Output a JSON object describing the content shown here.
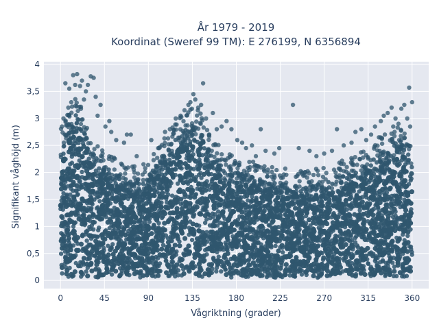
{
  "chart_data": {
    "type": "scatter",
    "title_line1": "År 1979 - 2019",
    "title_line2": "Koordinat (Sweref 99 TM): E 276199, N 6356894",
    "xlabel": "Vågriktning (grader)",
    "ylabel": "Signifikant våghöjd (m)",
    "xlim": [
      -17,
      377
    ],
    "ylim": [
      -0.15,
      4.05
    ],
    "xticks": [
      0,
      45,
      90,
      135,
      180,
      225,
      270,
      315,
      360
    ],
    "xtick_labels": [
      "0",
      "45",
      "90",
      "135",
      "180",
      "225",
      "270",
      "315",
      "360"
    ],
    "yticks": [
      0,
      0.5,
      1,
      1.5,
      2,
      2.5,
      3,
      3.5,
      4
    ],
    "ytick_labels": [
      "0",
      "0,5",
      "1",
      "1,5",
      "2",
      "2,5",
      "3",
      "3,5",
      "4"
    ],
    "grid": true,
    "marker_color": "#2f566e",
    "plot_bg": "#e5e8f0",
    "envelope": {
      "x": [
        0,
        5,
        10,
        15,
        20,
        25,
        30,
        40,
        50,
        60,
        70,
        80,
        90,
        100,
        110,
        120,
        130,
        135,
        140,
        145,
        150,
        160,
        170,
        180,
        190,
        200,
        210,
        225,
        240,
        255,
        270,
        285,
        300,
        315,
        330,
        340,
        350,
        355,
        360
      ],
      "y_max": [
        2.5,
        2.7,
        3.0,
        3.1,
        2.95,
        2.8,
        2.5,
        2.2,
        2.05,
        1.95,
        1.85,
        1.8,
        1.9,
        2.2,
        2.5,
        2.7,
        2.85,
        2.95,
        2.9,
        2.75,
        2.5,
        2.25,
        2.05,
        2.0,
        1.95,
        1.9,
        1.85,
        1.8,
        1.75,
        1.75,
        1.8,
        1.9,
        2.0,
        2.15,
        2.4,
        2.55,
        2.6,
        2.45,
        2.2
      ]
    },
    "outliers": [
      {
        "x": 5,
        "y": 3.65
      },
      {
        "x": 9,
        "y": 3.55
      },
      {
        "x": 13,
        "y": 3.8
      },
      {
        "x": 15,
        "y": 3.62
      },
      {
        "x": 17,
        "y": 3.82
      },
      {
        "x": 20,
        "y": 3.6
      },
      {
        "x": 22,
        "y": 3.7
      },
      {
        "x": 26,
        "y": 3.5
      },
      {
        "x": 28,
        "y": 3.62
      },
      {
        "x": 31,
        "y": 3.78
      },
      {
        "x": 34,
        "y": 3.75
      },
      {
        "x": 36,
        "y": 3.4
      },
      {
        "x": 11,
        "y": 3.3
      },
      {
        "x": 8,
        "y": 3.2
      },
      {
        "x": 41,
        "y": 3.25
      },
      {
        "x": 24,
        "y": 3.35
      },
      {
        "x": 3,
        "y": 3.0
      },
      {
        "x": 38,
        "y": 3.05
      },
      {
        "x": 46,
        "y": 2.85
      },
      {
        "x": 50,
        "y": 2.95
      },
      {
        "x": 52,
        "y": 2.75
      },
      {
        "x": 57,
        "y": 2.6
      },
      {
        "x": 65,
        "y": 2.55
      },
      {
        "x": 68,
        "y": 2.7
      },
      {
        "x": 72,
        "y": 2.7
      },
      {
        "x": 78,
        "y": 2.3
      },
      {
        "x": 85,
        "y": 2.15
      },
      {
        "x": 93,
        "y": 2.6
      },
      {
        "x": 100,
        "y": 2.45
      },
      {
        "x": 107,
        "y": 2.75
      },
      {
        "x": 112,
        "y": 2.8
      },
      {
        "x": 118,
        "y": 3.0
      },
      {
        "x": 123,
        "y": 3.05
      },
      {
        "x": 127,
        "y": 3.15
      },
      {
        "x": 131,
        "y": 3.25
      },
      {
        "x": 133,
        "y": 3.3
      },
      {
        "x": 136,
        "y": 3.45
      },
      {
        "x": 138,
        "y": 3.35
      },
      {
        "x": 141,
        "y": 3.2
      },
      {
        "x": 144,
        "y": 3.25
      },
      {
        "x": 146,
        "y": 3.65
      },
      {
        "x": 149,
        "y": 3.0
      },
      {
        "x": 156,
        "y": 3.1
      },
      {
        "x": 160,
        "y": 2.8
      },
      {
        "x": 165,
        "y": 2.85
      },
      {
        "x": 170,
        "y": 2.95
      },
      {
        "x": 175,
        "y": 2.8
      },
      {
        "x": 181,
        "y": 2.6
      },
      {
        "x": 186,
        "y": 2.55
      },
      {
        "x": 190,
        "y": 2.45
      },
      {
        "x": 196,
        "y": 2.5
      },
      {
        "x": 200,
        "y": 2.3
      },
      {
        "x": 205,
        "y": 2.8
      },
      {
        "x": 210,
        "y": 2.4
      },
      {
        "x": 219,
        "y": 2.35
      },
      {
        "x": 224,
        "y": 2.45
      },
      {
        "x": 238,
        "y": 3.25
      },
      {
        "x": 244,
        "y": 2.45
      },
      {
        "x": 255,
        "y": 2.4
      },
      {
        "x": 262,
        "y": 2.3
      },
      {
        "x": 270,
        "y": 2.35
      },
      {
        "x": 278,
        "y": 2.4
      },
      {
        "x": 283,
        "y": 2.8
      },
      {
        "x": 290,
        "y": 2.5
      },
      {
        "x": 298,
        "y": 2.55
      },
      {
        "x": 302,
        "y": 2.75
      },
      {
        "x": 308,
        "y": 2.8
      },
      {
        "x": 313,
        "y": 2.6
      },
      {
        "x": 318,
        "y": 2.7
      },
      {
        "x": 322,
        "y": 2.85
      },
      {
        "x": 328,
        "y": 2.95
      },
      {
        "x": 331,
        "y": 3.05
      },
      {
        "x": 335,
        "y": 3.1
      },
      {
        "x": 339,
        "y": 3.2
      },
      {
        "x": 343,
        "y": 3.0
      },
      {
        "x": 346,
        "y": 2.9
      },
      {
        "x": 349,
        "y": 3.18
      },
      {
        "x": 352,
        "y": 3.25
      },
      {
        "x": 355,
        "y": 3.0
      },
      {
        "x": 357,
        "y": 3.57
      },
      {
        "x": 360,
        "y": 3.3
      },
      {
        "x": 358,
        "y": 2.85
      },
      {
        "x": 342,
        "y": 2.75
      },
      {
        "x": 326,
        "y": 2.65
      }
    ]
  }
}
